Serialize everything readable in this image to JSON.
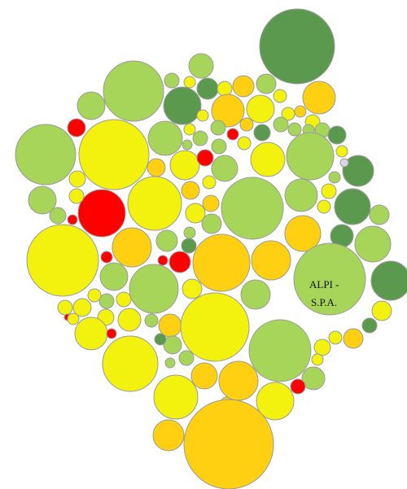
{
  "palette": {
    "dark-green": "#5b9a4e",
    "lime": "#a7d55a",
    "yellow": "#f2f20e",
    "amber": "#ffd012",
    "red": "#ff0000",
    "grey": "#d8d8e0"
  },
  "chart_data": {
    "type": "bubble-pack",
    "title": "",
    "legend": "none",
    "labeled_bubble": {
      "line1": "ALPI -",
      "line2": "S.P.A."
    }
  }
}
